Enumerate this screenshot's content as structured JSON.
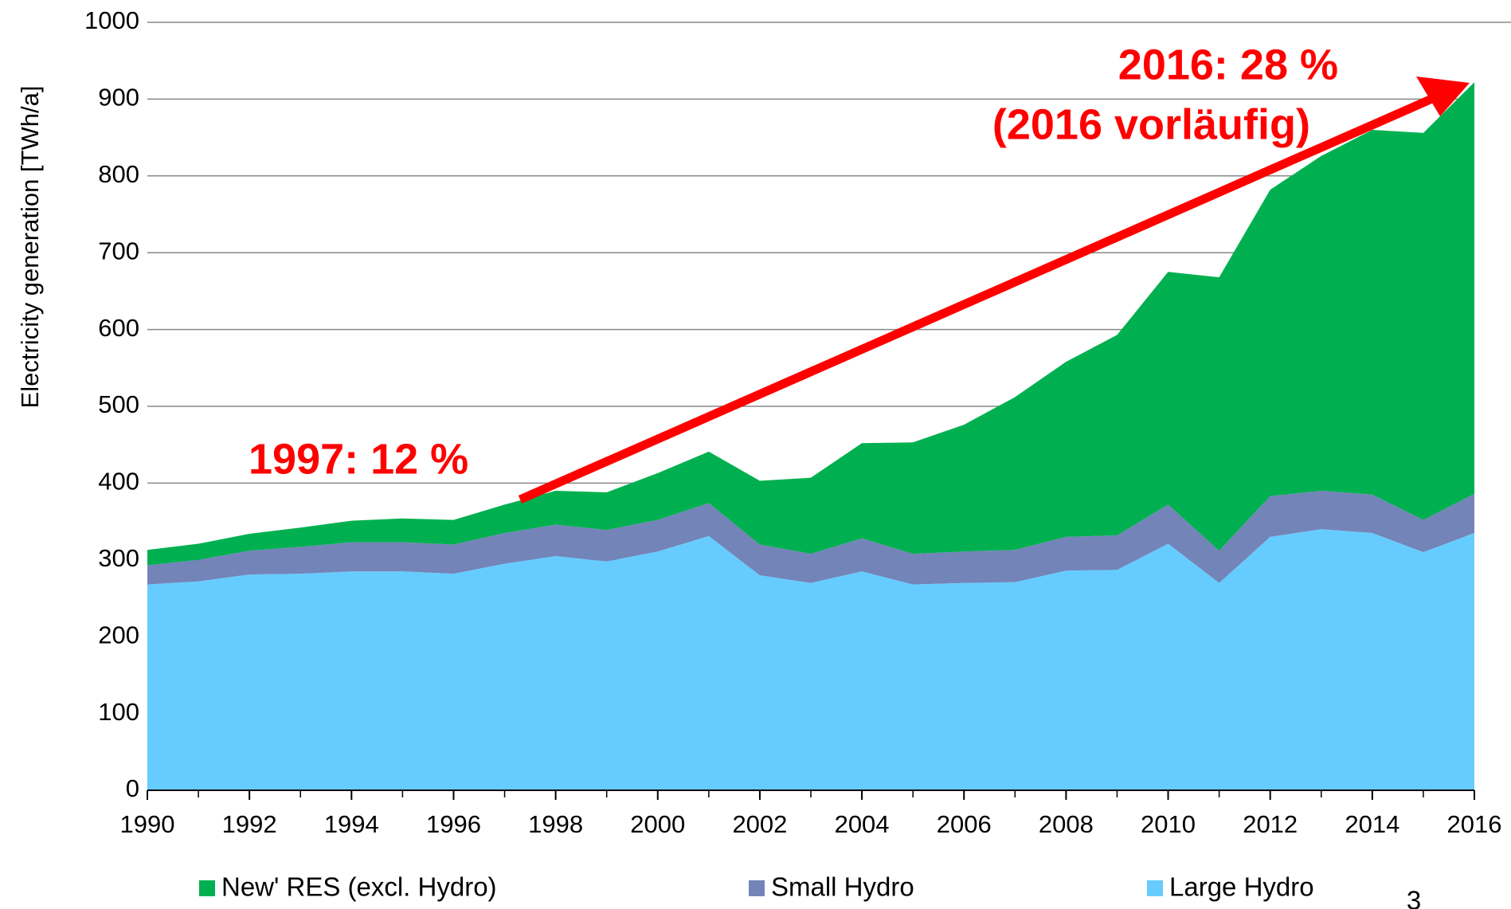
{
  "chart_data": {
    "type": "stacked_area",
    "y_label": "Electricity generation  [TWh/a]",
    "x": [
      1990,
      1991,
      1992,
      1993,
      1994,
      1995,
      1996,
      1997,
      1998,
      1999,
      2000,
      2001,
      2002,
      2003,
      2004,
      2005,
      2006,
      2007,
      2008,
      2009,
      2010,
      2011,
      2012,
      2013,
      2014,
      2015,
      2016
    ],
    "series": [
      {
        "name": "New' RES (excl. Hydro)",
        "color": "#00b050",
        "values": [
          20,
          21,
          22,
          25,
          28,
          31,
          32,
          37,
          44,
          49,
          61,
          67,
          83,
          99,
          124,
          145,
          165,
          199,
          228,
          261,
          303,
          356,
          399,
          436,
          475,
          504,
          536
        ]
      },
      {
        "name": "Small Hydro",
        "color": "#7384b8",
        "values": [
          25,
          28,
          31,
          35,
          38,
          38,
          38,
          40,
          41,
          41,
          41,
          43,
          40,
          38,
          43,
          40,
          41,
          42,
          44,
          45,
          51,
          42,
          53,
          50,
          50,
          42,
          51
        ]
      },
      {
        "name": "Large Hydro",
        "color": "#66ccff",
        "values": [
          268,
          272,
          281,
          282,
          285,
          285,
          282,
          295,
          305,
          298,
          311,
          331,
          280,
          270,
          285,
          268,
          270,
          271,
          286,
          287,
          321,
          270,
          330,
          340,
          335,
          310,
          335
        ]
      }
    ],
    "xlim": [
      1990,
      2016
    ],
    "xticks": [
      1990,
      1992,
      1994,
      1996,
      1998,
      2000,
      2002,
      2004,
      2006,
      2008,
      2010,
      2012,
      2014,
      2016
    ],
    "ylim": [
      0,
      1000
    ],
    "yticks": [
      0,
      100,
      200,
      300,
      400,
      500,
      600,
      700,
      800,
      900,
      1000
    ],
    "grid": true,
    "annotations": [
      "2016: 28 %",
      "(2016 vorläufig)",
      "1997: 12 %"
    ],
    "page_number": "3"
  }
}
